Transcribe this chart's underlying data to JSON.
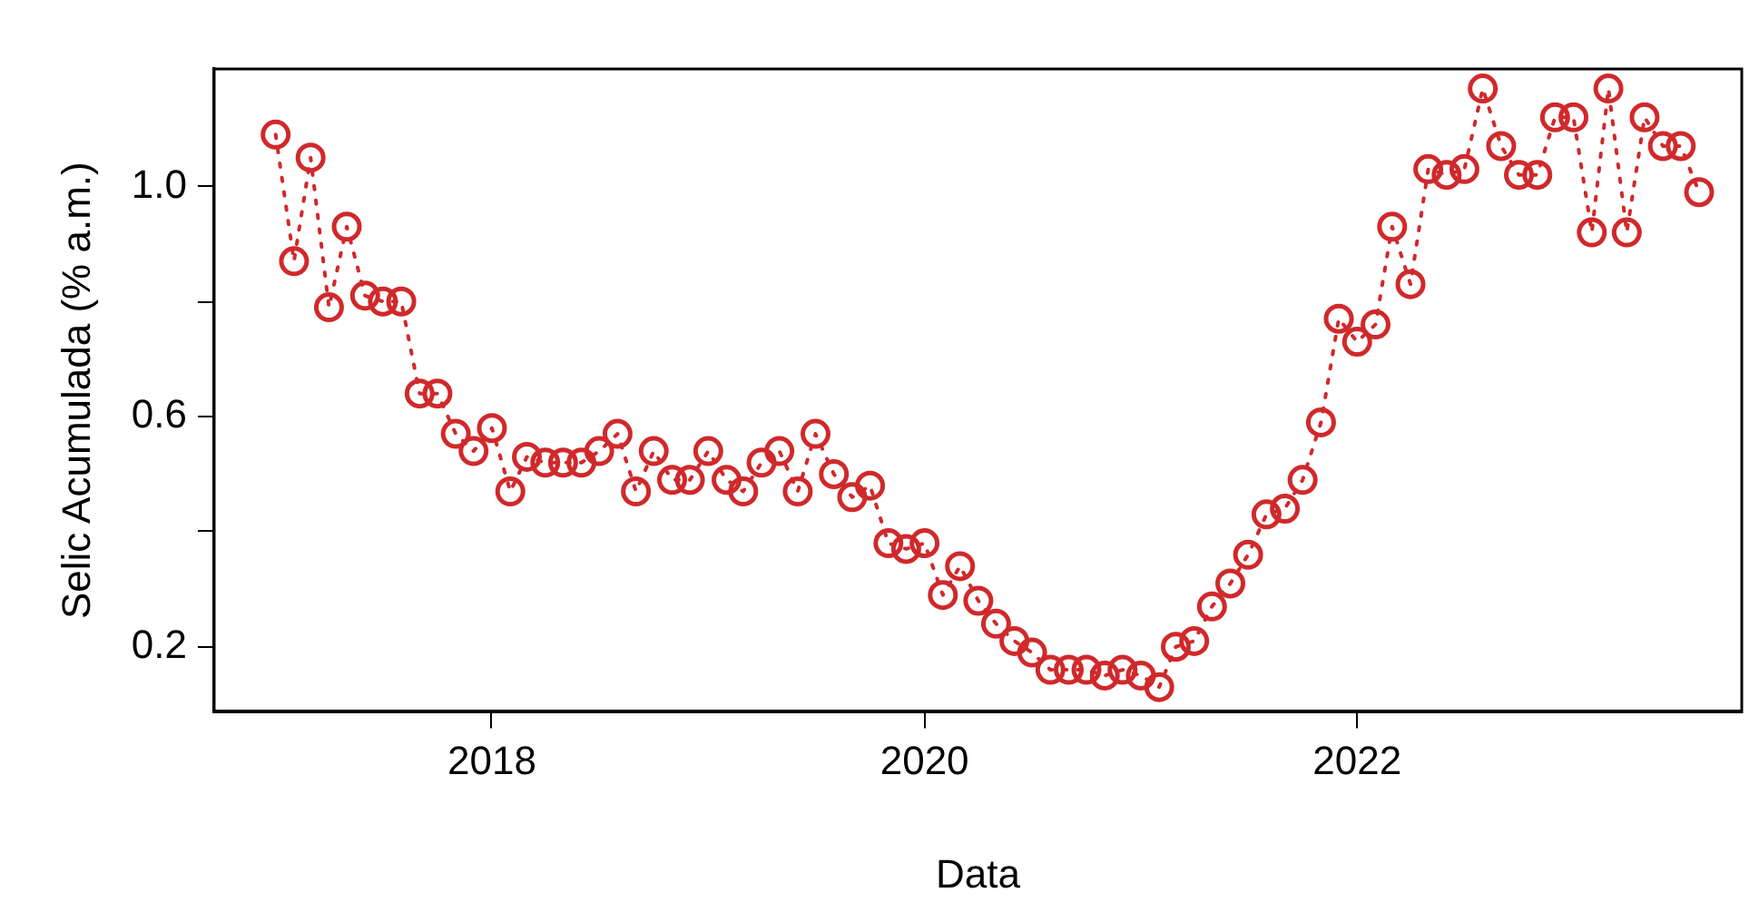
{
  "chart_data": {
    "type": "line",
    "xlabel": "Data",
    "ylabel": "Selic Acumulada (% a.m.)",
    "x": [
      "2017-01",
      "2017-02",
      "2017-03",
      "2017-04",
      "2017-05",
      "2017-06",
      "2017-07",
      "2017-08",
      "2017-09",
      "2017-10",
      "2017-11",
      "2017-12",
      "2018-01",
      "2018-02",
      "2018-03",
      "2018-04",
      "2018-05",
      "2018-06",
      "2018-07",
      "2018-08",
      "2018-09",
      "2018-10",
      "2018-11",
      "2018-12",
      "2019-01",
      "2019-02",
      "2019-03",
      "2019-04",
      "2019-05",
      "2019-06",
      "2019-07",
      "2019-08",
      "2019-09",
      "2019-10",
      "2019-11",
      "2019-12",
      "2020-01",
      "2020-02",
      "2020-03",
      "2020-04",
      "2020-05",
      "2020-06",
      "2020-07",
      "2020-08",
      "2020-09",
      "2020-10",
      "2020-11",
      "2020-12",
      "2021-01",
      "2021-02",
      "2021-03",
      "2021-04",
      "2021-05",
      "2021-06",
      "2021-07",
      "2021-08",
      "2021-09",
      "2021-10",
      "2021-11",
      "2021-12",
      "2022-01",
      "2022-02",
      "2022-03",
      "2022-04",
      "2022-05",
      "2022-06",
      "2022-07",
      "2022-08",
      "2022-09",
      "2022-10",
      "2022-11",
      "2022-12",
      "2023-01",
      "2023-02",
      "2023-03",
      "2023-04",
      "2023-05",
      "2023-06",
      "2023-07",
      "2023-08"
    ],
    "series": [
      {
        "color": "#d0292b",
        "values": [
          1.09,
          0.87,
          1.05,
          0.79,
          0.93,
          0.81,
          0.8,
          0.8,
          0.64,
          0.64,
          0.57,
          0.54,
          0.58,
          0.47,
          0.53,
          0.52,
          0.52,
          0.52,
          0.54,
          0.57,
          0.47,
          0.54,
          0.49,
          0.49,
          0.54,
          0.49,
          0.47,
          0.52,
          0.54,
          0.47,
          0.57,
          0.5,
          0.46,
          0.48,
          0.38,
          0.37,
          0.38,
          0.29,
          0.34,
          0.28,
          0.24,
          0.21,
          0.19,
          0.16,
          0.16,
          0.16,
          0.15,
          0.16,
          0.15,
          0.13,
          0.2,
          0.21,
          0.27,
          0.31,
          0.36,
          0.43,
          0.44,
          0.49,
          0.59,
          0.77,
          0.73,
          0.76,
          0.93,
          0.83,
          1.03,
          1.02,
          1.03,
          1.17,
          1.07,
          1.02,
          1.02,
          1.12,
          1.12,
          0.92,
          1.17,
          0.92,
          1.12,
          1.07,
          1.07,
          0.99
        ]
      }
    ],
    "xlim": [
      "2016-09-19",
      "2023-10-12"
    ],
    "xticks": [
      "2018",
      "2020",
      "2022"
    ],
    "ylim": [
      0.087,
      1.204
    ],
    "yticks": [
      0.2,
      {
        "value": 0.4,
        "label": null
      },
      0.6,
      {
        "value": 0.8,
        "label": null
      },
      {
        "value": 1,
        "label": "1.0"
      }
    ],
    "grid": false,
    "legend": false,
    "marker": "circle",
    "line_style": "dotted"
  }
}
